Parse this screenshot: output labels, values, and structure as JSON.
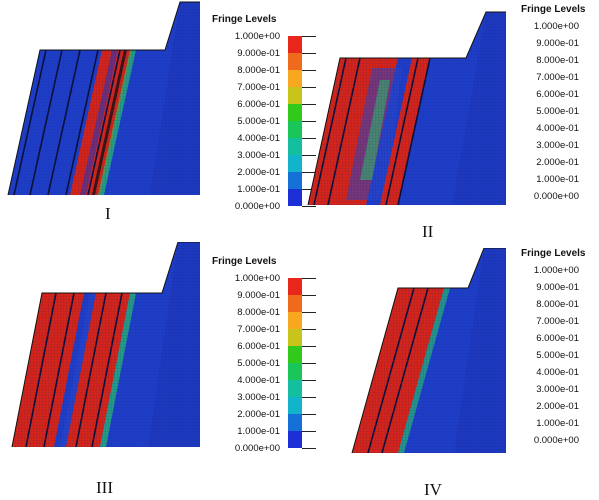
{
  "legend_title": "Fringe Levels",
  "levels": [
    "1.000e+00",
    "9.000e-01",
    "8.000e-01",
    "7.000e-01",
    "6.000e-01",
    "5.000e-01",
    "4.000e-01",
    "3.000e-01",
    "2.000e-01",
    "1.000e-01",
    "0.000e+00"
  ],
  "scale_colors": [
    "#e8261c",
    "#ef6a1d",
    "#f7a820",
    "#c8c41c",
    "#33c91a",
    "#1ac65a",
    "#14bfa0",
    "#12b4cc",
    "#1570d8",
    "#1c2fd6"
  ],
  "panels": [
    {
      "label": "I",
      "stripe_band": "narrow"
    },
    {
      "label": "II",
      "stripe_band": "wide-left"
    },
    {
      "label": "III",
      "stripe_band": "wide"
    },
    {
      "label": "IV",
      "stripe_band": "medium"
    }
  ]
}
